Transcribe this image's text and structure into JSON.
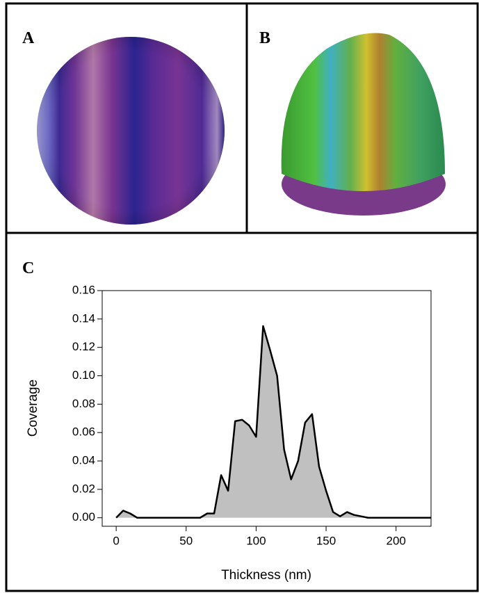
{
  "panels": {
    "a": {
      "label": "A"
    },
    "b": {
      "label": "B"
    }
  },
  "chart_data": {
    "type": "area",
    "panel_label": "C",
    "x_label": "Thickness (nm)",
    "y_label": "Coverage",
    "x": [
      0,
      5,
      10,
      15,
      20,
      25,
      30,
      35,
      40,
      45,
      50,
      55,
      60,
      65,
      70,
      75,
      80,
      85,
      90,
      95,
      100,
      105,
      110,
      115,
      120,
      125,
      130,
      135,
      140,
      145,
      150,
      155,
      160,
      165,
      170,
      175,
      180,
      185,
      190,
      195,
      200,
      205,
      210,
      215,
      220,
      225
    ],
    "values": [
      0,
      0.005,
      0.003,
      0,
      0,
      0,
      0,
      0,
      0,
      0,
      0,
      0,
      0,
      0.003,
      0.003,
      0.03,
      0.019,
      0.068,
      0.069,
      0.065,
      0.057,
      0.135,
      0.118,
      0.1,
      0.048,
      0.027,
      0.04,
      0.067,
      0.073,
      0.036,
      0.019,
      0.004,
      0.001,
      0.004,
      0.002,
      0.001,
      0,
      0,
      0,
      0,
      0,
      0,
      0,
      0,
      0,
      0
    ],
    "color": "#c0c0c0",
    "line_color": "#000000",
    "xlim": [
      -10,
      225
    ],
    "ylim": [
      -0.006,
      0.16
    ],
    "xticks": [
      0,
      50,
      100,
      150,
      200
    ],
    "yticks": [
      {
        "value": 0,
        "label": "0.00"
      },
      {
        "value": 0.02,
        "label": "0.02"
      },
      {
        "value": 0.04,
        "label": "0.04"
      },
      {
        "value": 0.06,
        "label": "0.06"
      },
      {
        "value": 0.08,
        "label": "0.08"
      },
      {
        "value": 0.1,
        "label": "0.10"
      },
      {
        "value": 0.12,
        "label": "0.12"
      },
      {
        "value": 0.14,
        "label": "0.14"
      },
      {
        "value": 0.16,
        "label": "0.16"
      }
    ]
  }
}
